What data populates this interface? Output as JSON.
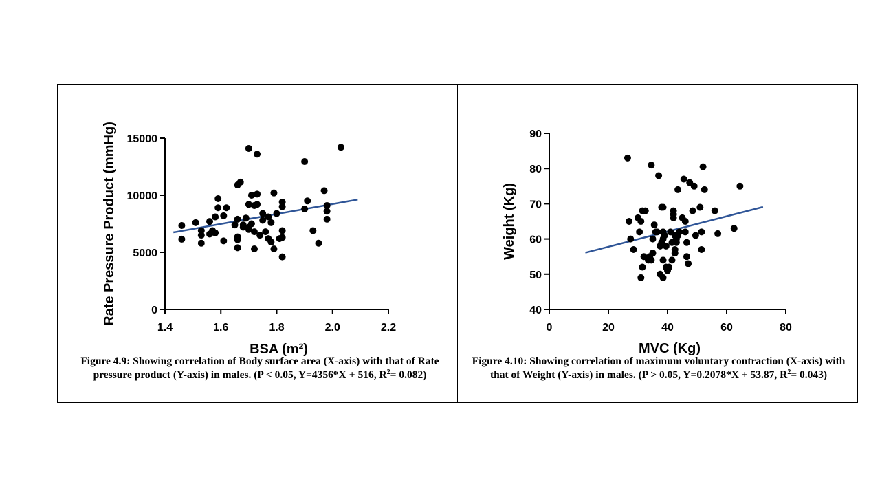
{
  "chart_data": [
    {
      "type": "scatter",
      "title": "",
      "xlabel": "BSA (m²)",
      "ylabel": "Rate Pressure Product (mmHg)",
      "xlim": [
        1.4,
        2.2
      ],
      "ylim": [
        0,
        15000
      ],
      "xticks": [
        "1.4",
        "1.6",
        "1.8",
        "2.0",
        "2.2"
      ],
      "yticks": [
        "0",
        "5000",
        "10000",
        "15000"
      ],
      "grid": false,
      "point_color": "#000000",
      "line_color": "#2f5597",
      "regression": {
        "x": [
          1.43,
          2.09
        ],
        "y": [
          6745,
          9620
        ]
      },
      "points": [
        [
          1.46,
          7350
        ],
        [
          1.46,
          6150
        ],
        [
          1.51,
          7600
        ],
        [
          1.53,
          6500
        ],
        [
          1.53,
          5800
        ],
        [
          1.53,
          6900
        ],
        [
          1.56,
          7700
        ],
        [
          1.56,
          6600
        ],
        [
          1.57,
          6900
        ],
        [
          1.58,
          6700
        ],
        [
          1.58,
          8100
        ],
        [
          1.59,
          8900
        ],
        [
          1.59,
          9700
        ],
        [
          1.61,
          8200
        ],
        [
          1.61,
          6000
        ],
        [
          1.62,
          8900
        ],
        [
          1.65,
          7400
        ],
        [
          1.66,
          5400
        ],
        [
          1.66,
          6100
        ],
        [
          1.66,
          6350
        ],
        [
          1.66,
          7900
        ],
        [
          1.66,
          10900
        ],
        [
          1.67,
          11150
        ],
        [
          1.68,
          7400
        ],
        [
          1.68,
          7200
        ],
        [
          1.69,
          8000
        ],
        [
          1.7,
          7000
        ],
        [
          1.7,
          7200
        ],
        [
          1.7,
          9200
        ],
        [
          1.7,
          14100
        ],
        [
          1.71,
          10000
        ],
        [
          1.71,
          7500
        ],
        [
          1.72,
          6800
        ],
        [
          1.72,
          5300
        ],
        [
          1.72,
          9100
        ],
        [
          1.73,
          9200
        ],
        [
          1.73,
          10100
        ],
        [
          1.73,
          13600
        ],
        [
          1.74,
          6500
        ],
        [
          1.75,
          7800
        ],
        [
          1.75,
          8400
        ],
        [
          1.76,
          6800
        ],
        [
          1.77,
          8100
        ],
        [
          1.77,
          6200
        ],
        [
          1.78,
          5900
        ],
        [
          1.78,
          7600
        ],
        [
          1.79,
          10200
        ],
        [
          1.79,
          5300
        ],
        [
          1.8,
          8400
        ],
        [
          1.81,
          6200
        ],
        [
          1.82,
          9400
        ],
        [
          1.82,
          9000
        ],
        [
          1.82,
          6900
        ],
        [
          1.82,
          6300
        ],
        [
          1.82,
          4600
        ],
        [
          1.9,
          8800
        ],
        [
          1.9,
          12950
        ],
        [
          1.91,
          9500
        ],
        [
          1.93,
          6900
        ],
        [
          1.95,
          5800
        ],
        [
          1.97,
          10400
        ],
        [
          1.98,
          8600
        ],
        [
          1.98,
          7900
        ],
        [
          1.98,
          9100
        ],
        [
          2.03,
          14200
        ]
      ]
    },
    {
      "type": "scatter",
      "title": "",
      "xlabel": "MVC (Kg)",
      "ylabel": "Weight (Kg)",
      "xlim": [
        0,
        80
      ],
      "ylim": [
        40,
        90
      ],
      "xticks": [
        "0",
        "20",
        "40",
        "60",
        "80"
      ],
      "yticks": [
        "40",
        "50",
        "60",
        "70",
        "80",
        "90"
      ],
      "grid": false,
      "point_color": "#000000",
      "line_color": "#2f5597",
      "regression": {
        "x": [
          12.2,
          72.3
        ],
        "y": [
          56.1,
          69.1
        ]
      },
      "points": [
        [
          26.5,
          83
        ],
        [
          27,
          65
        ],
        [
          27.5,
          60
        ],
        [
          28.5,
          57
        ],
        [
          30,
          66
        ],
        [
          30.5,
          62
        ],
        [
          31,
          49
        ],
        [
          31,
          65
        ],
        [
          31.5,
          68
        ],
        [
          31.5,
          52
        ],
        [
          32,
          55
        ],
        [
          32.5,
          68
        ],
        [
          33.5,
          54
        ],
        [
          34,
          55
        ],
        [
          34.5,
          54
        ],
        [
          34.5,
          81
        ],
        [
          35,
          56
        ],
        [
          35,
          60
        ],
        [
          35.5,
          64
        ],
        [
          36,
          62
        ],
        [
          36.5,
          62
        ],
        [
          37,
          78
        ],
        [
          37.5,
          50
        ],
        [
          37.5,
          58
        ],
        [
          38,
          69
        ],
        [
          38,
          59
        ],
        [
          38.5,
          49
        ],
        [
          38.5,
          54
        ],
        [
          38.5,
          60
        ],
        [
          38.5,
          62
        ],
        [
          38.5,
          69
        ],
        [
          39,
          61
        ],
        [
          39.5,
          58
        ],
        [
          39.5,
          52
        ],
        [
          40,
          51
        ],
        [
          40.5,
          52
        ],
        [
          41,
          62
        ],
        [
          41.5,
          59
        ],
        [
          41.5,
          54
        ],
        [
          42,
          68
        ],
        [
          42,
          67
        ],
        [
          42,
          66
        ],
        [
          42.5,
          61
        ],
        [
          42.5,
          57
        ],
        [
          42.5,
          56
        ],
        [
          43,
          59
        ],
        [
          43,
          60
        ],
        [
          43.5,
          61
        ],
        [
          43.5,
          74
        ],
        [
          44,
          62
        ],
        [
          45,
          66
        ],
        [
          45.5,
          77
        ],
        [
          46,
          65
        ],
        [
          46,
          62
        ],
        [
          46.5,
          59
        ],
        [
          46.5,
          55
        ],
        [
          47,
          53
        ],
        [
          47.5,
          76
        ],
        [
          48.5,
          68
        ],
        [
          49,
          75
        ],
        [
          49.5,
          61
        ],
        [
          51,
          69
        ],
        [
          51.5,
          62
        ],
        [
          51.5,
          57
        ],
        [
          52,
          80.5
        ],
        [
          52.5,
          74
        ],
        [
          56,
          68
        ],
        [
          57,
          61.5
        ],
        [
          62.5,
          63
        ],
        [
          64.5,
          75
        ]
      ]
    }
  ],
  "captions": {
    "fig9_main": "Figure 4.9: Showing correlation of Body surface area (X-axis) with that of Rate pressure product (Y-axis) in males. (P < 0.05, Y=4356*X + 516, R",
    "fig9_sup": "2",
    "fig9_tail": "= 0.082)",
    "fig10_main": "Figure 4.10: Showing correlation of maximum voluntary contraction (X-axis) with that of Weight (Y-axis) in males. (P > 0.05, Y=0.2078*X + 53.87, R",
    "fig10_sup": "2",
    "fig10_tail": "= 0.043)"
  }
}
